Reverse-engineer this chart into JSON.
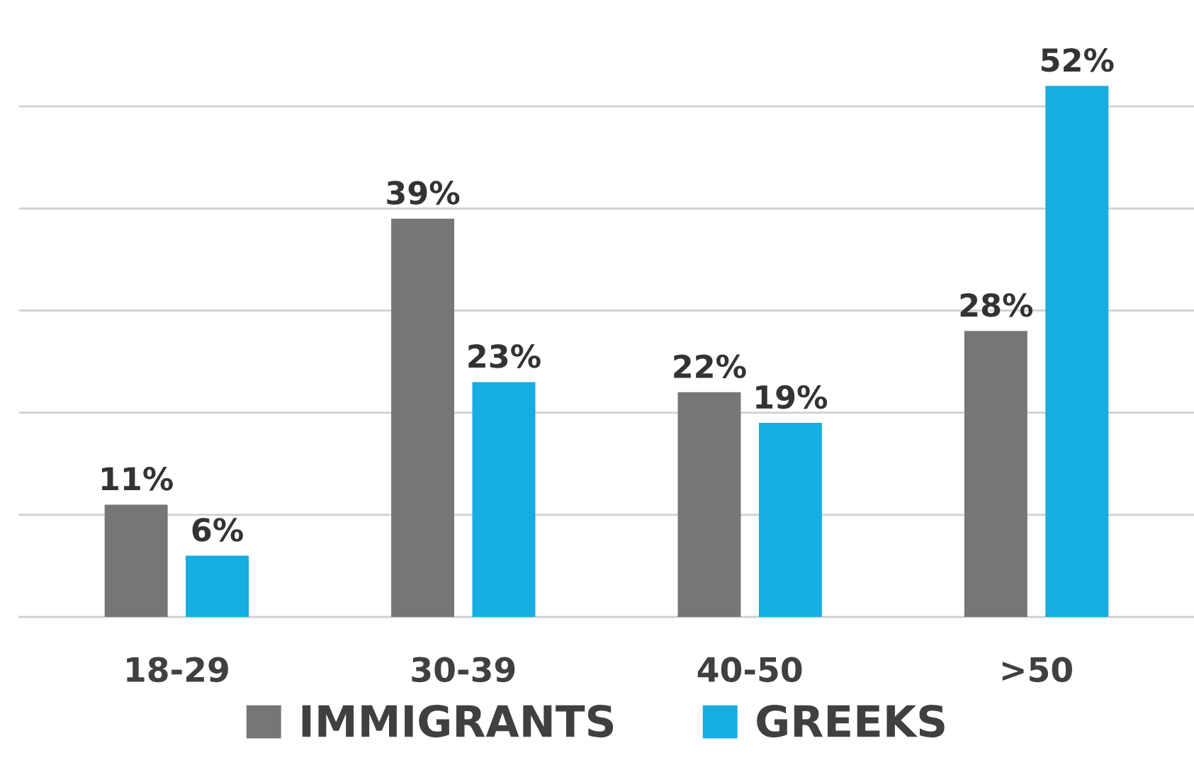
{
  "chart_data": {
    "type": "bar",
    "categories": [
      "18-29",
      "30-39",
      "40-50",
      ">50"
    ],
    "series": [
      {
        "name": "IMMIGRANTS",
        "color": "#767678",
        "values": [
          11,
          39,
          22,
          28
        ],
        "value_labels": [
          "11%",
          "39%",
          "22%",
          "28%"
        ]
      },
      {
        "name": "GREEKS",
        "color": "#15ade2",
        "values": [
          6,
          23,
          19,
          52
        ],
        "value_labels": [
          "6%",
          "23%",
          "19%",
          "52%"
        ]
      }
    ],
    "tick_labels": "x",
    "grid": "y",
    "legend": "bottom"
  }
}
